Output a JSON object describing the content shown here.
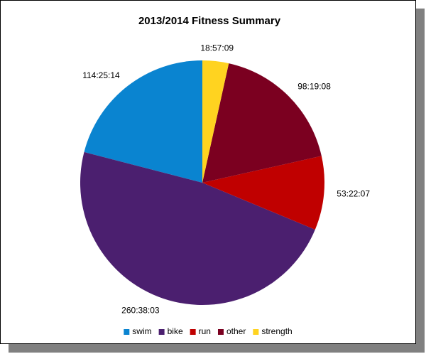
{
  "chart_data": {
    "type": "pie",
    "title": "2013/2014 Fitness Summary",
    "categories": [
      "swim",
      "bike",
      "run",
      "other",
      "strength"
    ],
    "values": [
      411914,
      938283,
      192127,
      353948,
      68229
    ],
    "value_labels": [
      "114:25:14",
      "260:38:03",
      "53:22:07",
      "98:19:08",
      "18:57:09"
    ],
    "colors": [
      "#0a84d0",
      "#4b1f6f",
      "#c00000",
      "#7b0020",
      "#ffd320"
    ],
    "legend": "bottom"
  }
}
